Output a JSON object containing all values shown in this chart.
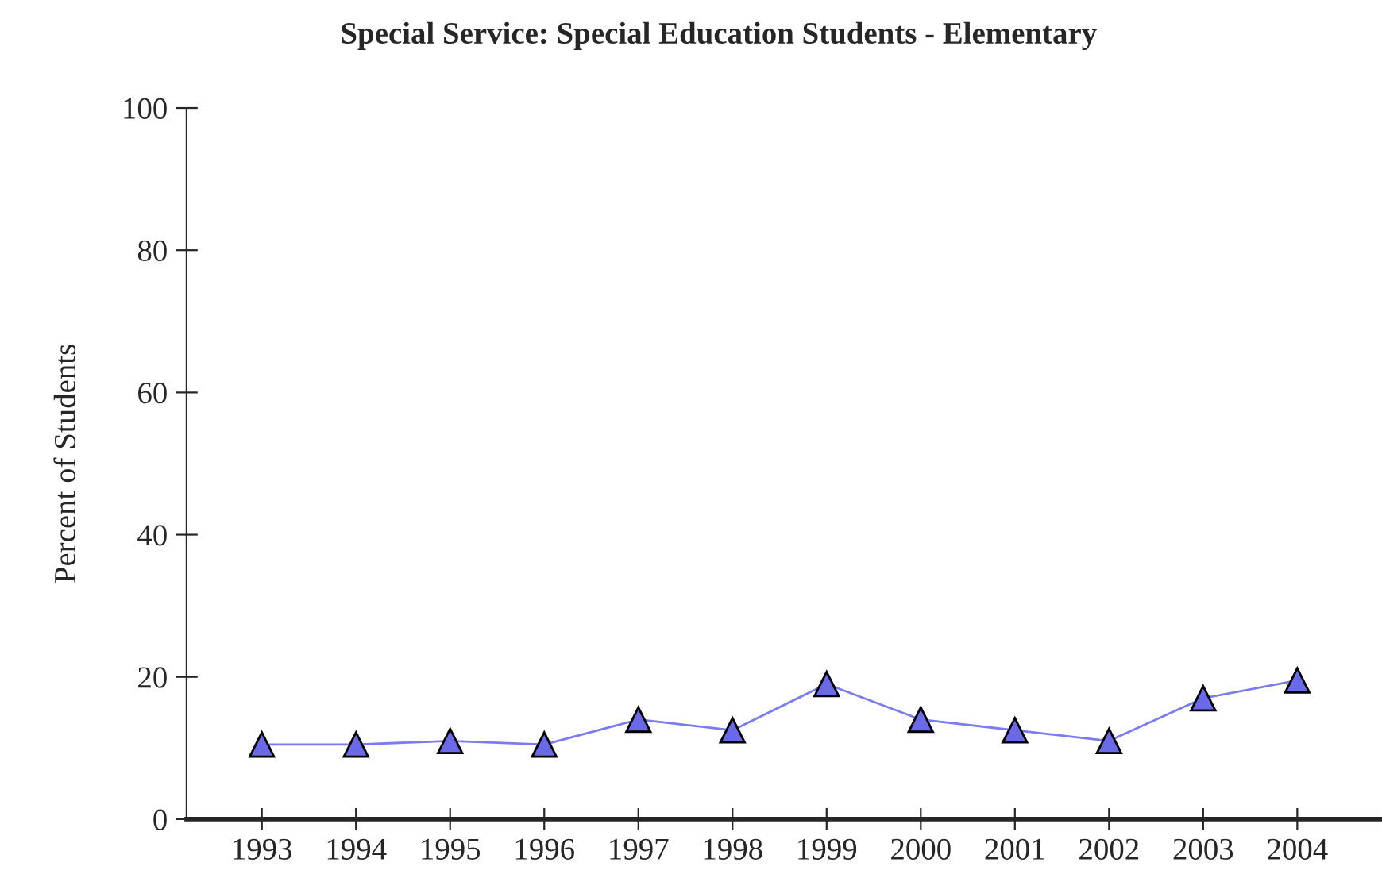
{
  "chart_data": {
    "type": "line",
    "title": "Special Service: Special Education Students - Elementary",
    "ylabel": "Percent of Students",
    "categories": [
      "1993",
      "1994",
      "1995",
      "1996",
      "1997",
      "1998",
      "1999",
      "2000",
      "2001",
      "2002",
      "2003",
      "2004"
    ],
    "series": [
      {
        "color": "#7b7bf0",
        "values": [
          10.5,
          10.5,
          11,
          10.5,
          14,
          12.5,
          19,
          14,
          12.5,
          11,
          17,
          19.5
        ]
      }
    ],
    "ylim": [
      0,
      100
    ],
    "yticks": [
      0,
      20,
      40,
      60,
      80,
      100
    ],
    "marker": "triangle",
    "line_style": "solid",
    "grid": false,
    "legend": false
  }
}
